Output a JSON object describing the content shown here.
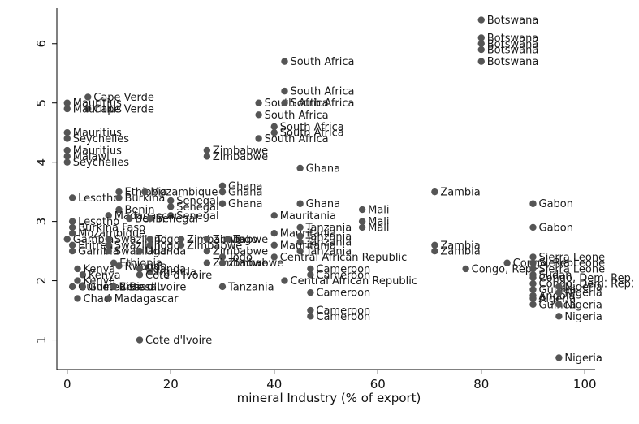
{
  "chart_data": {
    "type": "scatter",
    "title": "",
    "xlabel": "mineral Industry (% of export)",
    "ylabel": "",
    "xlim": [
      -2,
      102
    ],
    "ylim": [
      0.5,
      6.6
    ],
    "xticks": [
      0,
      20,
      40,
      60,
      80,
      100
    ],
    "yticks": [
      1,
      2,
      3,
      4,
      5,
      6
    ],
    "grid": false,
    "legend": "none",
    "marker_color": "#555555",
    "points": [
      {
        "x": 80,
        "y": 6.4,
        "label": "Botswana"
      },
      {
        "x": 80,
        "y": 6.1,
        "label": "Botswana"
      },
      {
        "x": 80,
        "y": 6.0,
        "label": "Botswana"
      },
      {
        "x": 80,
        "y": 5.9,
        "label": "Botswana"
      },
      {
        "x": 80,
        "y": 5.7,
        "label": "Botswana"
      },
      {
        "x": 42,
        "y": 5.7,
        "label": "South Africa"
      },
      {
        "x": 42,
        "y": 5.2,
        "label": "South Africa"
      },
      {
        "x": 37,
        "y": 5.0,
        "label": "South Africa"
      },
      {
        "x": 42,
        "y": 5.0,
        "label": "South Africa"
      },
      {
        "x": 37,
        "y": 4.8,
        "label": "South Africa"
      },
      {
        "x": 40,
        "y": 4.6,
        "label": "South Africa"
      },
      {
        "x": 40,
        "y": 4.5,
        "label": "South Africa"
      },
      {
        "x": 37,
        "y": 4.4,
        "label": "South Africa"
      },
      {
        "x": 4,
        "y": 5.1,
        "label": "Cape Verde"
      },
      {
        "x": 0,
        "y": 5.0,
        "label": "Mauritius"
      },
      {
        "x": 4,
        "y": 4.9,
        "label": "Cape Verde"
      },
      {
        "x": 0,
        "y": 4.9,
        "label": "Mauritius"
      },
      {
        "x": 0,
        "y": 4.5,
        "label": "Mauritius"
      },
      {
        "x": 0,
        "y": 4.4,
        "label": "Seychelles"
      },
      {
        "x": 0,
        "y": 4.2,
        "label": "Mauritius"
      },
      {
        "x": 0,
        "y": 4.1,
        "label": "Malawi"
      },
      {
        "x": 0,
        "y": 4.0,
        "label": "Seychelles"
      },
      {
        "x": 27,
        "y": 4.2,
        "label": "Zimbabwe"
      },
      {
        "x": 27,
        "y": 4.1,
        "label": "Zimbabwe"
      },
      {
        "x": 45,
        "y": 3.9,
        "label": "Ghana"
      },
      {
        "x": 30,
        "y": 3.6,
        "label": "Ghana"
      },
      {
        "x": 30,
        "y": 3.5,
        "label": "Ghana"
      },
      {
        "x": 30,
        "y": 3.3,
        "label": "Ghana"
      },
      {
        "x": 45,
        "y": 3.3,
        "label": "Ghana"
      },
      {
        "x": 1,
        "y": 3.4,
        "label": "Lesotho"
      },
      {
        "x": 10,
        "y": 3.4,
        "label": "Burkina"
      },
      {
        "x": 10,
        "y": 3.5,
        "label": "Ethiopia"
      },
      {
        "x": 15,
        "y": 3.5,
        "label": "Mozambique"
      },
      {
        "x": 20,
        "y": 3.35,
        "label": "Senegal"
      },
      {
        "x": 20,
        "y": 3.25,
        "label": "Senegal"
      },
      {
        "x": 20,
        "y": 3.1,
        "label": "Senegal"
      },
      {
        "x": 10,
        "y": 3.2,
        "label": "Benin"
      },
      {
        "x": 8,
        "y": 3.1,
        "label": "Madagascar"
      },
      {
        "x": 12,
        "y": 3.05,
        "label": "Benin"
      },
      {
        "x": 16,
        "y": 3.05,
        "label": "Senegal"
      },
      {
        "x": 1,
        "y": 3.0,
        "label": "Lesotho"
      },
      {
        "x": 1,
        "y": 2.9,
        "label": "Burkina Faso"
      },
      {
        "x": 1,
        "y": 2.8,
        "label": "Mozambique"
      },
      {
        "x": 40,
        "y": 3.1,
        "label": "Mauritania"
      },
      {
        "x": 57,
        "y": 3.2,
        "label": "Mali"
      },
      {
        "x": 57,
        "y": 3.0,
        "label": "Mali"
      },
      {
        "x": 57,
        "y": 2.9,
        "label": "Mali"
      },
      {
        "x": 45,
        "y": 2.9,
        "label": "Tanzania"
      },
      {
        "x": 40,
        "y": 2.8,
        "label": "Mauritania"
      },
      {
        "x": 45,
        "y": 2.75,
        "label": "Tanzania"
      },
      {
        "x": 45,
        "y": 2.65,
        "label": "Tanzania"
      },
      {
        "x": 40,
        "y": 2.6,
        "label": "Mauritania"
      },
      {
        "x": 45,
        "y": 2.5,
        "label": "Tanzania"
      },
      {
        "x": 40,
        "y": 2.4,
        "label": "Central African Republic"
      },
      {
        "x": 71,
        "y": 3.5,
        "label": "Zambia"
      },
      {
        "x": 71,
        "y": 2.6,
        "label": "Zambia"
      },
      {
        "x": 71,
        "y": 2.5,
        "label": "Zambia"
      },
      {
        "x": 90,
        "y": 3.3,
        "label": "Gabon"
      },
      {
        "x": 90,
        "y": 2.9,
        "label": "Gabon"
      },
      {
        "x": 0,
        "y": 2.7,
        "label": "Gambia"
      },
      {
        "x": 8,
        "y": 2.7,
        "label": "Swaziland"
      },
      {
        "x": 1,
        "y": 2.6,
        "label": "Eritrea"
      },
      {
        "x": 8,
        "y": 2.6,
        "label": "Swaziland"
      },
      {
        "x": 1,
        "y": 2.5,
        "label": "Gambia"
      },
      {
        "x": 8,
        "y": 2.5,
        "label": "Swaziland"
      },
      {
        "x": 16,
        "y": 2.7,
        "label": "Togo"
      },
      {
        "x": 22,
        "y": 2.7,
        "label": "Zimbabwe"
      },
      {
        "x": 27,
        "y": 2.7,
        "label": "Zimbabwe"
      },
      {
        "x": 31,
        "y": 2.7,
        "label": "Togo"
      },
      {
        "x": 16,
        "y": 2.6,
        "label": "Togo"
      },
      {
        "x": 22,
        "y": 2.6,
        "label": "Zimbabwe"
      },
      {
        "x": 14,
        "y": 2.5,
        "label": "Uganda"
      },
      {
        "x": 27,
        "y": 2.5,
        "label": "Zimbabwe"
      },
      {
        "x": 9,
        "y": 2.3,
        "label": "Ethiopia"
      },
      {
        "x": 10,
        "y": 2.25,
        "label": "Rwanda"
      },
      {
        "x": 14,
        "y": 2.2,
        "label": "Uganda"
      },
      {
        "x": 16,
        "y": 2.15,
        "label": "Uganda"
      },
      {
        "x": 14,
        "y": 2.1,
        "label": "Cote d'Ivoire"
      },
      {
        "x": 30,
        "y": 2.4,
        "label": "Togo"
      },
      {
        "x": 27,
        "y": 2.3,
        "label": "Zimbabwe"
      },
      {
        "x": 30,
        "y": 2.3,
        "label": "Zimbabwe"
      },
      {
        "x": 2,
        "y": 2.2,
        "label": "Kenya"
      },
      {
        "x": 3,
        "y": 2.1,
        "label": "Kenya"
      },
      {
        "x": 2,
        "y": 2.0,
        "label": "Kenya"
      },
      {
        "x": 1,
        "y": 1.9,
        "label": "Guinea-Bissau"
      },
      {
        "x": 3,
        "y": 1.9,
        "label": "Guinea-Bissau"
      },
      {
        "x": 9,
        "y": 1.9,
        "label": "Cote d'Ivoire"
      },
      {
        "x": 2,
        "y": 1.7,
        "label": "Chad"
      },
      {
        "x": 8,
        "y": 1.7,
        "label": "Madagascar"
      },
      {
        "x": 30,
        "y": 1.9,
        "label": "Tanzania"
      },
      {
        "x": 47,
        "y": 2.2,
        "label": "Cameroon"
      },
      {
        "x": 47,
        "y": 2.1,
        "label": "Cameroon"
      },
      {
        "x": 42,
        "y": 2.0,
        "label": "Central African Republic"
      },
      {
        "x": 47,
        "y": 1.8,
        "label": "Cameroon"
      },
      {
        "x": 47,
        "y": 1.5,
        "label": "Cameroon"
      },
      {
        "x": 47,
        "y": 1.4,
        "label": "Cameroon"
      },
      {
        "x": 14,
        "y": 1.0,
        "label": "Cote d'Ivoire"
      },
      {
        "x": 77,
        "y": 2.2,
        "label": "Congo, Rep."
      },
      {
        "x": 85,
        "y": 2.3,
        "label": "Congo, Rep."
      },
      {
        "x": 90,
        "y": 2.4,
        "label": "Sierra Leone"
      },
      {
        "x": 90,
        "y": 2.3,
        "label": "Sierra Leone"
      },
      {
        "x": 90,
        "y": 2.2,
        "label": "Sierra Leone"
      },
      {
        "x": 90,
        "y": 2.1,
        "label": "Sudan"
      },
      {
        "x": 90,
        "y": 2.05,
        "label": "Congo, Dem. Rep."
      },
      {
        "x": 90,
        "y": 1.95,
        "label": "Congo, Dem. Rep."
      },
      {
        "x": 90,
        "y": 1.85,
        "label": "Guinea"
      },
      {
        "x": 90,
        "y": 1.75,
        "label": "Angola"
      },
      {
        "x": 90,
        "y": 1.7,
        "label": "Algeria"
      },
      {
        "x": 90,
        "y": 1.6,
        "label": "Guinea"
      },
      {
        "x": 95,
        "y": 1.9,
        "label": "Nigeria"
      },
      {
        "x": 95,
        "y": 1.8,
        "label": "Nigeria"
      },
      {
        "x": 95,
        "y": 1.6,
        "label": "Nigeria"
      },
      {
        "x": 95,
        "y": 1.4,
        "label": "Nigeria"
      },
      {
        "x": 95,
        "y": 0.7,
        "label": "Nigeria"
      }
    ]
  }
}
